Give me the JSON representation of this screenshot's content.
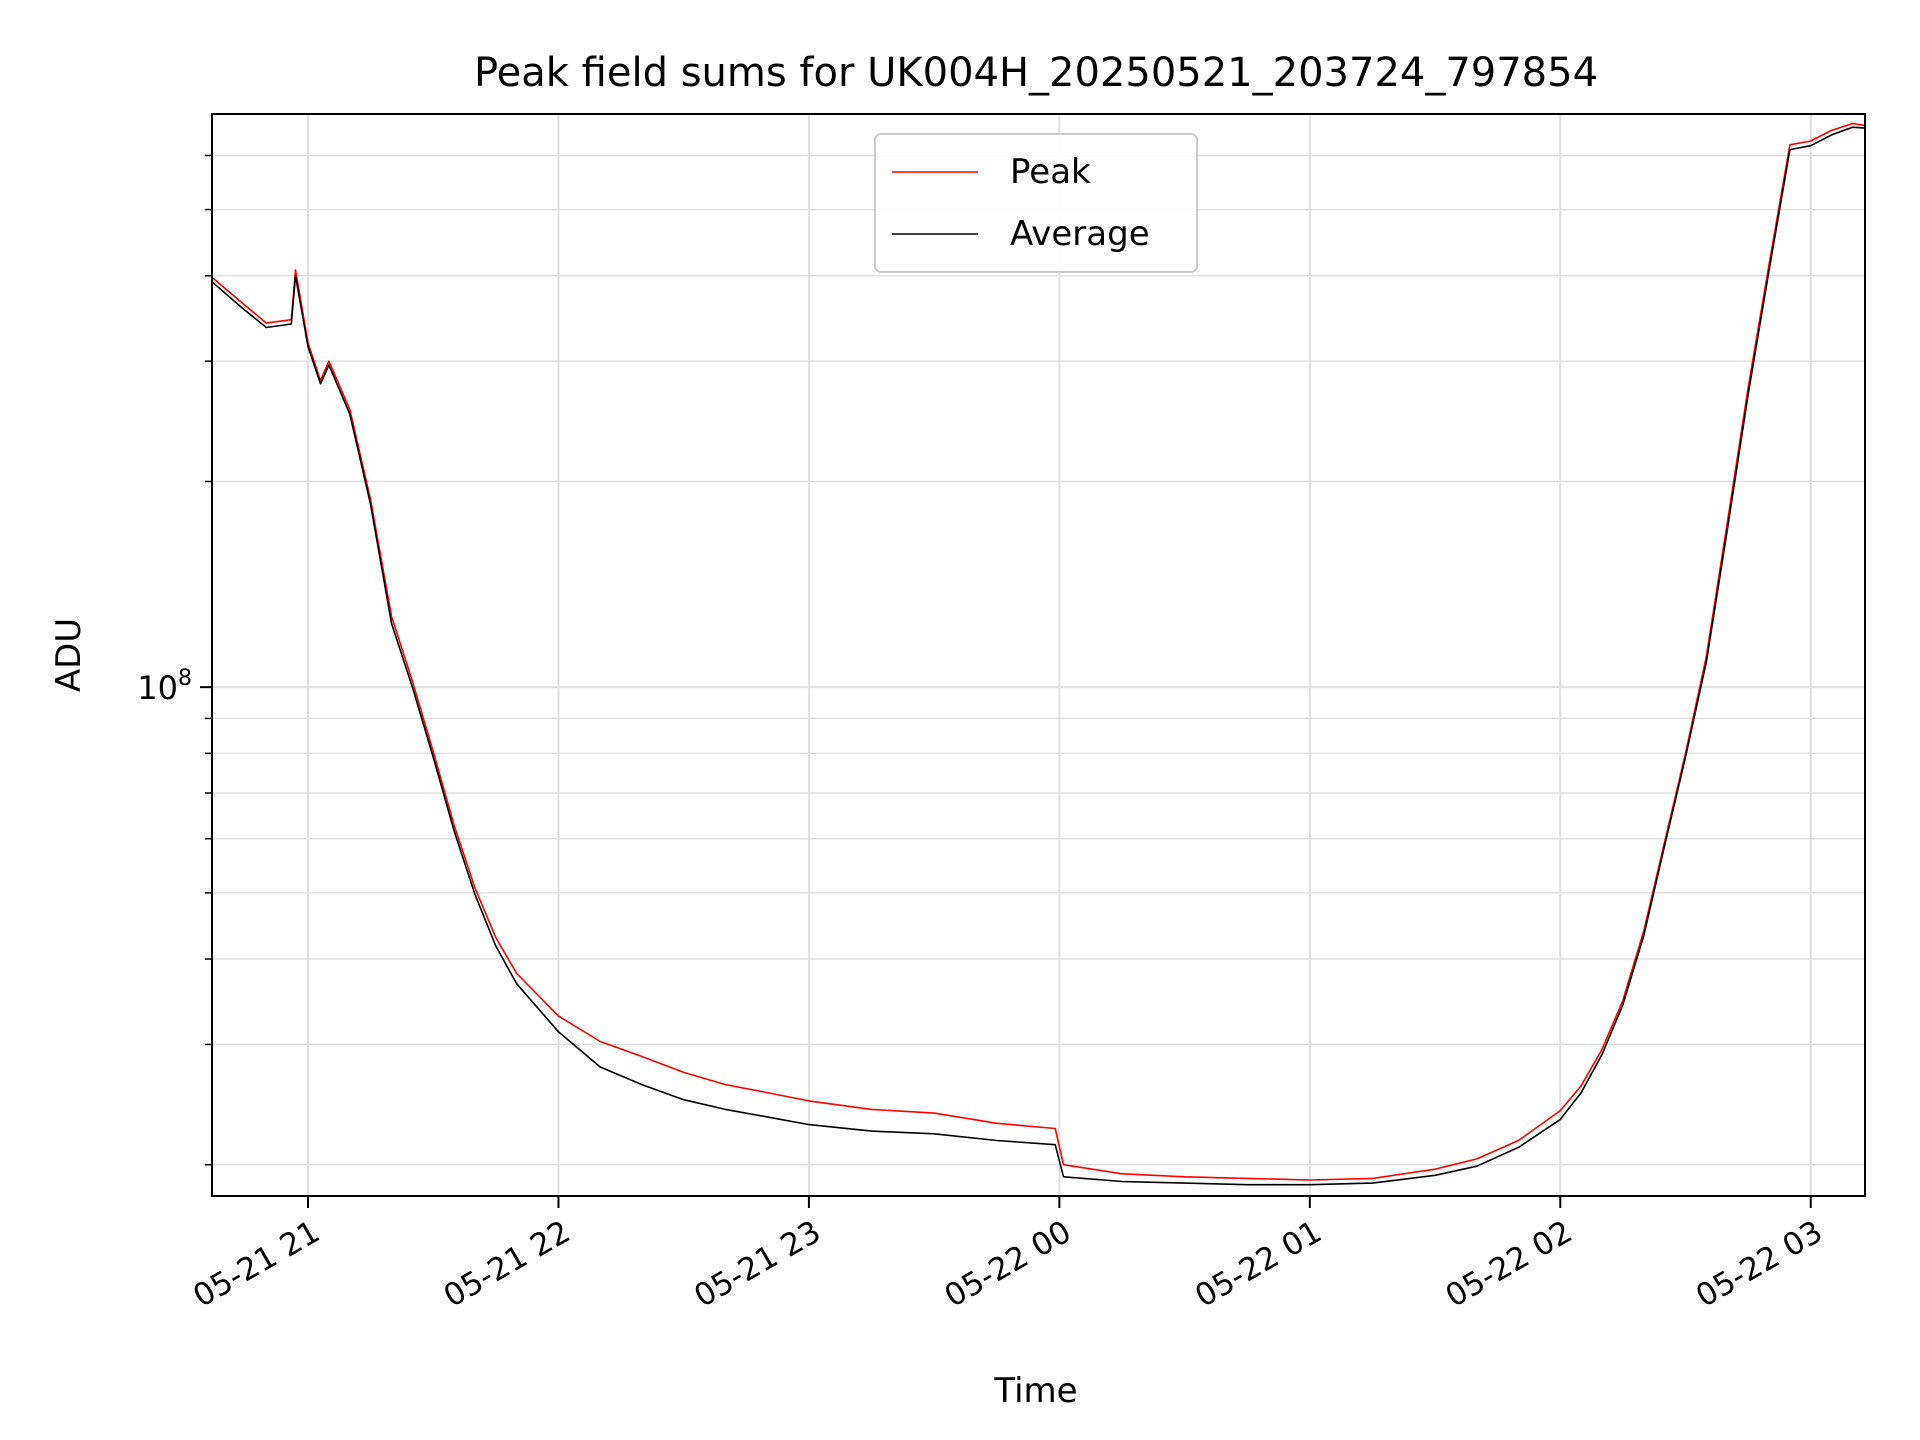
{
  "chart_data": {
    "type": "line",
    "title": "Peak field sums for UK004H_20250521_203724_797854",
    "xlabel": "Time",
    "ylabel": "ADU",
    "yscale": "log",
    "grid": true,
    "legend_position": "upper center",
    "xlim": [
      "2025-05-21 20:37",
      "2025-05-22 03:13"
    ],
    "ylim": [
      18000000,
      690000000
    ],
    "x_ticks": [
      "05-21 21",
      "05-21 22",
      "05-21 23",
      "05-22 00",
      "05-22 01",
      "05-22 02",
      "05-22 03"
    ],
    "y_ticks": [
      {
        "value": 100000000,
        "base": "10",
        "exp": "8"
      }
    ],
    "colors": {
      "peak": "#ff0000",
      "average": "#000000",
      "grid": "#e0e0e0"
    },
    "x": [
      "2025-05-21 20:37",
      "2025-05-21 20:44",
      "2025-05-21 20:50",
      "2025-05-21 20:56",
      "2025-05-21 20:57",
      "2025-05-21 21:00",
      "2025-05-21 21:03",
      "2025-05-21 21:05",
      "2025-05-21 21:10",
      "2025-05-21 21:15",
      "2025-05-21 21:20",
      "2025-05-21 21:25",
      "2025-05-21 21:30",
      "2025-05-21 21:35",
      "2025-05-21 21:40",
      "2025-05-21 21:45",
      "2025-05-21 21:50",
      "2025-05-21 22:00",
      "2025-05-21 22:10",
      "2025-05-21 22:20",
      "2025-05-21 22:30",
      "2025-05-21 22:40",
      "2025-05-21 22:50",
      "2025-05-21 23:00",
      "2025-05-21 23:15",
      "2025-05-21 23:30",
      "2025-05-21 23:45",
      "2025-05-21 23:59",
      "2025-05-22 00:01",
      "2025-05-22 00:15",
      "2025-05-22 00:30",
      "2025-05-22 00:45",
      "2025-05-22 01:00",
      "2025-05-22 01:15",
      "2025-05-22 01:30",
      "2025-05-22 01:40",
      "2025-05-22 01:50",
      "2025-05-22 02:00",
      "2025-05-22 02:05",
      "2025-05-22 02:10",
      "2025-05-22 02:15",
      "2025-05-22 02:20",
      "2025-05-22 02:25",
      "2025-05-22 02:30",
      "2025-05-22 02:35",
      "2025-05-22 02:40",
      "2025-05-22 02:45",
      "2025-05-22 02:50",
      "2025-05-22 02:55",
      "2025-05-22 03:00",
      "2025-05-22 03:05",
      "2025-05-22 03:10",
      "2025-05-22 03:13"
    ],
    "series": [
      {
        "name": "Peak",
        "values": [
          398000000,
          366000000,
          341000000,
          345000000,
          408000000,
          319000000,
          281000000,
          300000000,
          255000000,
          188000000,
          127000000,
          102000000,
          80500000,
          62800000,
          50800000,
          43000000,
          38100000,
          33000000,
          30300000,
          28800000,
          27300000,
          26200000,
          25500000,
          24800000,
          24100000,
          23800000,
          23000000,
          22600000,
          20000000,
          19400000,
          19200000,
          19100000,
          19000000,
          19100000,
          19700000,
          20400000,
          21700000,
          24000000,
          26100000,
          29500000,
          34800000,
          44000000,
          59300000,
          80000000,
          111000000,
          174000000,
          274000000,
          415000000,
          622000000,
          630000000,
          653000000,
          668000000,
          664000000
        ]
      },
      {
        "name": "Average",
        "values": [
          392000000,
          360000000,
          336000000,
          340000000,
          400000000,
          315000000,
          278000000,
          296000000,
          251000000,
          185000000,
          124000000,
          100000000,
          79000000,
          61600000,
          49700000,
          41800000,
          36800000,
          31300000,
          27800000,
          26200000,
          24900000,
          24100000,
          23500000,
          22900000,
          22400000,
          22200000,
          21700000,
          21400000,
          19200000,
          18900000,
          18800000,
          18700000,
          18700000,
          18800000,
          19300000,
          19900000,
          21200000,
          23300000,
          25500000,
          29000000,
          34300000,
          43300000,
          58600000,
          79000000,
          109000000,
          170000000,
          268000000,
          407000000,
          612000000,
          620000000,
          643000000,
          660000000,
          658000000
        ]
      }
    ]
  }
}
